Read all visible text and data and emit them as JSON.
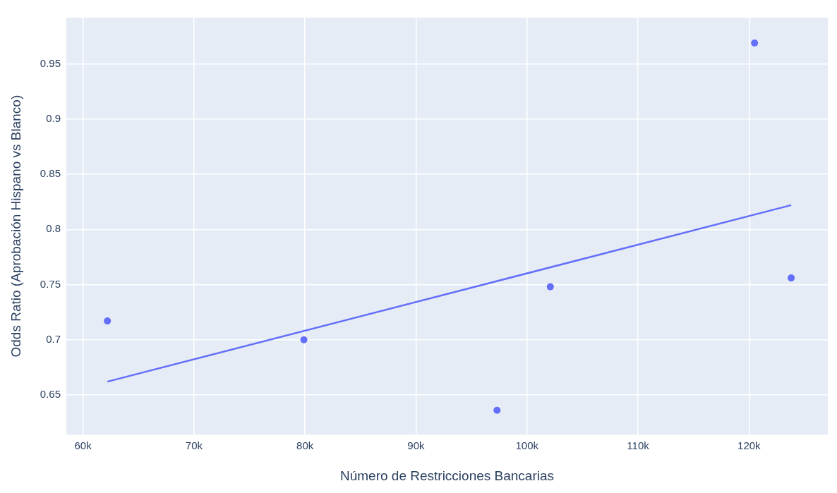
{
  "chart_data": {
    "type": "scatter",
    "xlabel": "Número de Restricciones Bancarias",
    "ylabel": "Odds Ratio (Aprobación Hispano vs Blanco)",
    "xlim": [
      58500,
      127100
    ],
    "ylim": [
      0.614,
      0.992
    ],
    "xticks": [
      {
        "value": 60000,
        "label": "60k"
      },
      {
        "value": 70000,
        "label": "70k"
      },
      {
        "value": 80000,
        "label": "80k"
      },
      {
        "value": 90000,
        "label": "90k"
      },
      {
        "value": 100000,
        "label": "100k"
      },
      {
        "value": 110000,
        "label": "110k"
      },
      {
        "value": 120000,
        "label": "120k"
      }
    ],
    "yticks": [
      0.65,
      0.7,
      0.75,
      0.8,
      0.85,
      0.9,
      0.95
    ],
    "grid": true,
    "legend": false,
    "marker": "circle",
    "series": [
      {
        "type": "scatter",
        "color": "#636efa",
        "x": [
          62200,
          79900,
          97300,
          102100,
          120500,
          123800
        ],
        "values": [
          0.717,
          0.7,
          0.636,
          0.748,
          0.969,
          0.756
        ]
      },
      {
        "type": "line",
        "color": "#636efa",
        "x": [
          62200,
          123800
        ],
        "values": [
          0.662,
          0.822
        ],
        "marker": "none",
        "line_style": "solid"
      }
    ]
  }
}
